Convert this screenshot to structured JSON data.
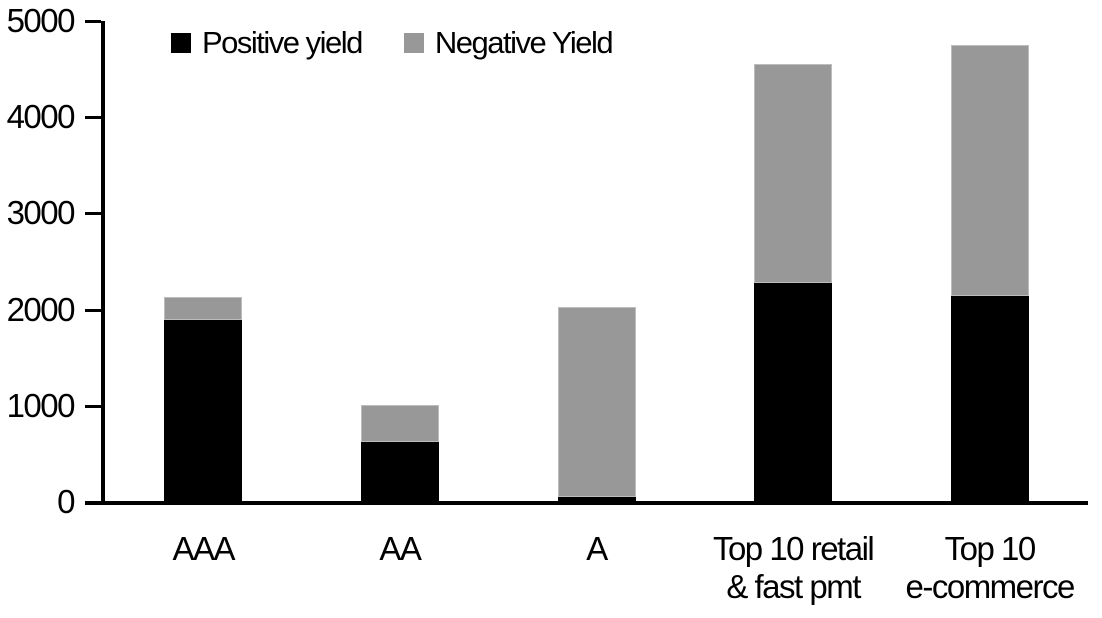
{
  "chart_data": {
    "type": "bar",
    "stacked": true,
    "title": "",
    "xlabel": "",
    "ylabel": "",
    "categories": [
      "AAA",
      "AA",
      "A",
      "Top 10 retail\n& fast pmt",
      "Top 10\ne-commerce"
    ],
    "series": [
      {
        "name": "Positive yield",
        "color": "#000000",
        "values": [
          1890,
          620,
          50,
          2280,
          2140
        ]
      },
      {
        "name": "Negative Yield",
        "color": "#989898",
        "values": [
          240,
          385,
          1975,
          2275,
          2610
        ]
      }
    ],
    "stack_totals": [
      2130,
      1005,
      2025,
      4555,
      4750
    ],
    "ylim": [
      0,
      5000
    ],
    "y_ticks": [
      0,
      1000,
      2000,
      3000,
      4000,
      5000
    ],
    "grid": "off",
    "legend_position": "top-inside",
    "colors": {
      "positive_series": "#000000",
      "negative_series": "#989898",
      "axis": "#000000",
      "background": "#ffffff",
      "bar_border": "#bdbdbd"
    }
  }
}
